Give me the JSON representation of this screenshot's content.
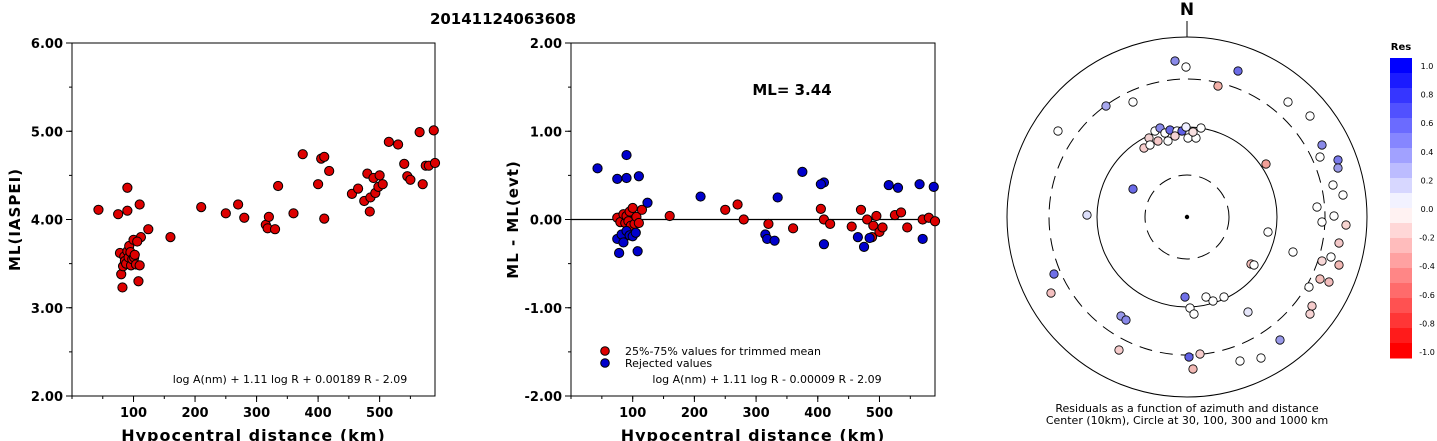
{
  "title": "20141124063608",
  "panel_left": {
    "ylabel": "ML(IASPEI)",
    "xlabel": "Hypocentral distance (km)",
    "yticks": [
      "2.00",
      "3.00",
      "4.00",
      "5.00",
      "6.00"
    ],
    "xticks": [
      "100",
      "200",
      "300",
      "400",
      "500"
    ],
    "formula": "log A(nm) + 1.11 log R + 0.00189 R - 2.09"
  },
  "panel_mid": {
    "ylabel": "ML - ML(evt)",
    "xlabel": "Hypocentral distance (km)",
    "yticks": [
      "-2.00",
      "-1.00",
      "0.00",
      "1.00",
      "2.00"
    ],
    "xticks": [
      "100",
      "200",
      "300",
      "400",
      "500"
    ],
    "ml_label": "ML= 3.44",
    "legend": [
      {
        "label": "25%-75% values for trimmed mean",
        "color": "#dd0000"
      },
      {
        "label": "Rejected values",
        "color": "#0000cc"
      }
    ],
    "formula": "log A(nm) + 1.11 log R - 0.00009 R - 2.09"
  },
  "panel_polar": {
    "north_label": "N",
    "caption_line1": "Residuals as a function of azimuth and distance",
    "caption_line2": "Center (10km), Circle at 30, 100, 300 and 1000 km"
  },
  "colorbar": {
    "title": "Res",
    "labels": [
      "1.0",
      "0.8",
      "0.6",
      "0.4",
      "0.2",
      "0.0",
      "-0.2",
      "-0.4",
      "-0.6",
      "-0.8",
      "-1.0"
    ]
  },
  "chart_data": [
    {
      "type": "scatter",
      "title": "20141124063608",
      "xlabel": "Hypocentral distance (km)",
      "ylabel": "ML(IASPEI)",
      "xlim": [
        0,
        590
      ],
      "ylim": [
        2.0,
        6.0
      ],
      "series": [
        {
          "color": "#dd0000",
          "points": [
            [
              43,
              4.11
            ],
            [
              75,
              4.06
            ],
            [
              90,
              4.1
            ],
            [
              90,
              4.36
            ],
            [
              110,
              4.17
            ],
            [
              112,
              3.8
            ],
            [
              124,
              3.89
            ],
            [
              160,
              3.8
            ],
            [
              210,
              4.14
            ],
            [
              250,
              4.07
            ],
            [
              270,
              4.17
            ],
            [
              280,
              4.02
            ],
            [
              315,
              3.94
            ],
            [
              318,
              3.9
            ],
            [
              320,
              4.03
            ],
            [
              330,
              3.89
            ],
            [
              335,
              4.38
            ],
            [
              360,
              4.07
            ],
            [
              375,
              4.74
            ],
            [
              400,
              4.4
            ],
            [
              405,
              4.69
            ],
            [
              410,
              4.71
            ],
            [
              410,
              4.01
            ],
            [
              418,
              4.55
            ],
            [
              455,
              4.29
            ],
            [
              465,
              4.35
            ],
            [
              475,
              4.21
            ],
            [
              480,
              4.52
            ],
            [
              484,
              4.09
            ],
            [
              485,
              4.25
            ],
            [
              490,
              4.47
            ],
            [
              493,
              4.3
            ],
            [
              498,
              4.37
            ],
            [
              500,
              4.5
            ],
            [
              505,
              4.4
            ],
            [
              515,
              4.88
            ],
            [
              530,
              4.85
            ],
            [
              540,
              4.63
            ],
            [
              545,
              4.49
            ],
            [
              550,
              4.45
            ],
            [
              565,
              4.99
            ],
            [
              570,
              4.4
            ],
            [
              575,
              4.61
            ],
            [
              580,
              4.61
            ],
            [
              588,
              5.01
            ],
            [
              590,
              4.64
            ],
            [
              78,
              3.62
            ],
            [
              80,
              3.38
            ],
            [
              82,
              3.23
            ],
            [
              83,
              3.47
            ],
            [
              85,
              3.58
            ],
            [
              86,
              3.53
            ],
            [
              88,
              3.5
            ],
            [
              90,
              3.64
            ],
            [
              92,
              3.57
            ],
            [
              93,
              3.7
            ],
            [
              95,
              3.63
            ],
            [
              96,
              3.48
            ],
            [
              98,
              3.55
            ],
            [
              100,
              3.77
            ],
            [
              101,
              3.57
            ],
            [
              102,
              3.6
            ],
            [
              104,
              3.49
            ],
            [
              106,
              3.75
            ],
            [
              108,
              3.3
            ],
            [
              110,
              3.48
            ]
          ]
        }
      ]
    },
    {
      "type": "scatter",
      "xlabel": "Hypocentral distance (km)",
      "ylabel": "ML - ML(evt)",
      "xlim": [
        0,
        590
      ],
      "ylim": [
        -2.0,
        2.0
      ],
      "series": [
        {
          "name": "25%-75% values for trimmed mean",
          "color": "#dd0000",
          "points": [
            [
              75,
              0.02
            ],
            [
              80,
              -0.03
            ],
            [
              85,
              0.06
            ],
            [
              88,
              -0.04
            ],
            [
              90,
              0.04
            ],
            [
              93,
              -0.02
            ],
            [
              95,
              0.09
            ],
            [
              97,
              -0.07
            ],
            [
              100,
              0.13
            ],
            [
              103,
              -0.05
            ],
            [
              106,
              0.03
            ],
            [
              110,
              -0.04
            ],
            [
              115,
              0.11
            ],
            [
              160,
              0.04
            ],
            [
              250,
              0.11
            ],
            [
              270,
              0.17
            ],
            [
              280,
              0.0
            ],
            [
              320,
              -0.05
            ],
            [
              360,
              -0.1
            ],
            [
              405,
              0.12
            ],
            [
              410,
              0.0
            ],
            [
              420,
              -0.05
            ],
            [
              455,
              -0.08
            ],
            [
              470,
              0.11
            ],
            [
              480,
              0.0
            ],
            [
              488,
              -0.2
            ],
            [
              490,
              -0.07
            ],
            [
              495,
              0.04
            ],
            [
              500,
              -0.14
            ],
            [
              505,
              -0.09
            ],
            [
              525,
              0.05
            ],
            [
              535,
              0.08
            ],
            [
              545,
              -0.09
            ],
            [
              570,
              0.0
            ],
            [
              580,
              0.02
            ],
            [
              590,
              -0.02
            ]
          ]
        },
        {
          "name": "Rejected values",
          "color": "#0000cc",
          "points": [
            [
              43,
              0.58
            ],
            [
              75,
              0.46
            ],
            [
              90,
              0.73
            ],
            [
              90,
              0.47
            ],
            [
              110,
              0.49
            ],
            [
              124,
              0.19
            ],
            [
              210,
              0.26
            ],
            [
              335,
              0.25
            ],
            [
              375,
              0.54
            ],
            [
              410,
              0.42
            ],
            [
              405,
              0.4
            ],
            [
              410,
              -0.28
            ],
            [
              315,
              -0.17
            ],
            [
              318,
              -0.22
            ],
            [
              330,
              -0.24
            ],
            [
              465,
              -0.2
            ],
            [
              475,
              -0.31
            ],
            [
              484,
              -0.21
            ],
            [
              515,
              0.39
            ],
            [
              530,
              0.36
            ],
            [
              565,
              0.4
            ],
            [
              570,
              -0.22
            ],
            [
              588,
              0.37
            ],
            [
              75,
              -0.22
            ],
            [
              78,
              -0.38
            ],
            [
              82,
              -0.17
            ],
            [
              85,
              -0.26
            ],
            [
              90,
              -0.13
            ],
            [
              95,
              -0.18
            ],
            [
              100,
              -0.19
            ],
            [
              108,
              -0.36
            ],
            [
              105,
              -0.15
            ]
          ]
        }
      ]
    }
  ]
}
